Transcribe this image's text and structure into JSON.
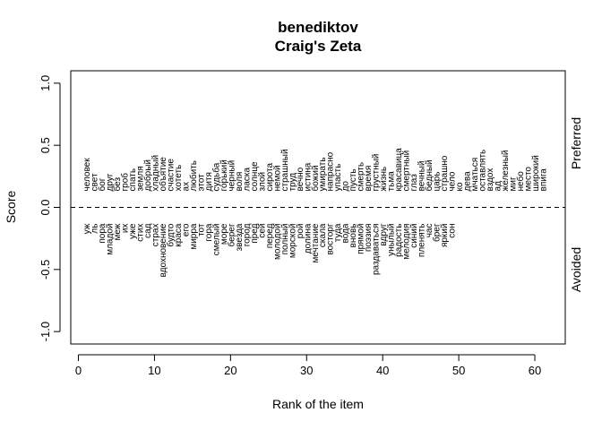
{
  "chart_data": {
    "type": "scatter",
    "title": "benediktov",
    "subtitle": "Craig's Zeta",
    "xlabel": "Rank of the item",
    "ylabel": "Score",
    "xlim": [
      -1,
      64
    ],
    "ylim": [
      -1.1,
      1.1
    ],
    "x_ticks": [
      "0",
      "10",
      "20",
      "30",
      "40",
      "50",
      "60"
    ],
    "y_ticks": [
      "-1.0",
      "-0.5",
      "0.0",
      "0.5",
      "1.0"
    ],
    "reference_line_y": 0,
    "grid": false,
    "right_labels": {
      "preferred": "Preferred",
      "avoided": "Avoided"
    },
    "preferred": [
      {
        "rank": 1,
        "word": "человек"
      },
      {
        "rank": 2,
        "word": "свет"
      },
      {
        "rank": 3,
        "word": "бог"
      },
      {
        "rank": 4,
        "word": "друг"
      },
      {
        "rank": 5,
        "word": "без"
      },
      {
        "rank": 6,
        "word": "гроб"
      },
      {
        "rank": 7,
        "word": "спать"
      },
      {
        "rank": 8,
        "word": "земля"
      },
      {
        "rank": 9,
        "word": "добрый"
      },
      {
        "rank": 10,
        "word": "хладный"
      },
      {
        "rank": 11,
        "word": "объятие"
      },
      {
        "rank": 12,
        "word": "счастие"
      },
      {
        "rank": 13,
        "word": "хотеть"
      },
      {
        "rank": 14,
        "word": "ах"
      },
      {
        "rank": 15,
        "word": "любить"
      },
      {
        "rank": 16,
        "word": "этот"
      },
      {
        "rank": 17,
        "word": "дитя"
      },
      {
        "rank": 18,
        "word": "судьба"
      },
      {
        "rank": 19,
        "word": "горький"
      },
      {
        "rank": 20,
        "word": "черный"
      },
      {
        "rank": 21,
        "word": "воля"
      },
      {
        "rank": 22,
        "word": "ласка"
      },
      {
        "rank": 23,
        "word": "солнце"
      },
      {
        "rank": 24,
        "word": "злой"
      },
      {
        "rank": 25,
        "word": "сирота"
      },
      {
        "rank": 26,
        "word": "немой"
      },
      {
        "rank": 27,
        "word": "страшный"
      },
      {
        "rank": 28,
        "word": "труд"
      },
      {
        "rank": 29,
        "word": "вечно"
      },
      {
        "rank": 30,
        "word": "истина"
      },
      {
        "rank": 31,
        "word": "божий"
      },
      {
        "rank": 32,
        "word": "умирать"
      },
      {
        "rank": 33,
        "word": "напрасно"
      },
      {
        "rank": 34,
        "word": "упасть"
      },
      {
        "rank": 35,
        "word": "до"
      },
      {
        "rank": 36,
        "word": "пусть"
      },
      {
        "rank": 37,
        "word": "смерть"
      },
      {
        "rank": 38,
        "word": "время"
      },
      {
        "rank": 39,
        "word": "грустный"
      },
      {
        "rank": 40,
        "word": "жизнь"
      },
      {
        "rank": 41,
        "word": "тьма"
      },
      {
        "rank": 42,
        "word": "красавица"
      },
      {
        "rank": 43,
        "word": "смертный"
      },
      {
        "rank": 44,
        "word": "глаз"
      },
      {
        "rank": 45,
        "word": "вечный"
      },
      {
        "rank": 46,
        "word": "бедный"
      },
      {
        "rank": 47,
        "word": "царь"
      },
      {
        "rank": 48,
        "word": "страшно"
      },
      {
        "rank": 49,
        "word": "чело"
      },
      {
        "rank": 50,
        "word": "ко"
      },
      {
        "rank": 51,
        "word": "дева"
      },
      {
        "rank": 52,
        "word": "мчаться"
      },
      {
        "rank": 53,
        "word": "оставлять"
      },
      {
        "rank": 54,
        "word": "вздох"
      },
      {
        "rank": 55,
        "word": "ад"
      },
      {
        "rank": 56,
        "word": "железный"
      },
      {
        "rank": 57,
        "word": "миг"
      },
      {
        "rank": 58,
        "word": "небо"
      },
      {
        "rank": 59,
        "word": "место"
      },
      {
        "rank": 60,
        "word": "широкий"
      },
      {
        "rank": 61,
        "word": "впига"
      }
    ],
    "avoided": [
      {
        "rank": 1,
        "word": "уж"
      },
      {
        "rank": 2,
        "word": "ль"
      },
      {
        "rank": 3,
        "word": "пора"
      },
      {
        "rank": 4,
        "word": "младой"
      },
      {
        "rank": 5,
        "word": "меж"
      },
      {
        "rank": 6,
        "word": "их"
      },
      {
        "rank": 7,
        "word": "уже"
      },
      {
        "rank": 8,
        "word": "стих"
      },
      {
        "rank": 9,
        "word": "сад"
      },
      {
        "rank": 10,
        "word": "страх"
      },
      {
        "rank": 11,
        "word": "вдохновение"
      },
      {
        "rank": 12,
        "word": "будто"
      },
      {
        "rank": 13,
        "word": "краса"
      },
      {
        "rank": 14,
        "word": "его"
      },
      {
        "rank": 15,
        "word": "мирра"
      },
      {
        "rank": 16,
        "word": "тот"
      },
      {
        "rank": 17,
        "word": "гора"
      },
      {
        "rank": 18,
        "word": "смелый"
      },
      {
        "rank": 19,
        "word": "море"
      },
      {
        "rank": 20,
        "word": "берег"
      },
      {
        "rank": 21,
        "word": "звезда"
      },
      {
        "rank": 22,
        "word": "город"
      },
      {
        "rank": 23,
        "word": "пред"
      },
      {
        "rank": 24,
        "word": "сей"
      },
      {
        "rank": 25,
        "word": "перед"
      },
      {
        "rank": 26,
        "word": "молодой"
      },
      {
        "rank": 27,
        "word": "полный"
      },
      {
        "rank": 28,
        "word": "морской"
      },
      {
        "rank": 29,
        "word": "рой"
      },
      {
        "rank": 30,
        "word": "долина"
      },
      {
        "rank": 31,
        "word": "мечтание"
      },
      {
        "rank": 32,
        "word": "скала"
      },
      {
        "rank": 33,
        "word": "восторг"
      },
      {
        "rank": 34,
        "word": "туда"
      },
      {
        "rank": 35,
        "word": "вода"
      },
      {
        "rank": 36,
        "word": "вновь"
      },
      {
        "rank": 37,
        "word": "прямой"
      },
      {
        "rank": 38,
        "word": "поэзия"
      },
      {
        "rank": 39,
        "word": "раздаваться"
      },
      {
        "rank": 40,
        "word": "вдруг"
      },
      {
        "rank": 41,
        "word": "унылый"
      },
      {
        "rank": 42,
        "word": "радость"
      },
      {
        "rank": 43,
        "word": "мелодия"
      },
      {
        "rank": 44,
        "word": "синий"
      },
      {
        "rank": 45,
        "word": "пленять"
      },
      {
        "rank": 46,
        "word": "час"
      },
      {
        "rank": 47,
        "word": "брег"
      },
      {
        "rank": 48,
        "word": "яркий"
      },
      {
        "rank": 49,
        "word": "сон"
      }
    ]
  }
}
